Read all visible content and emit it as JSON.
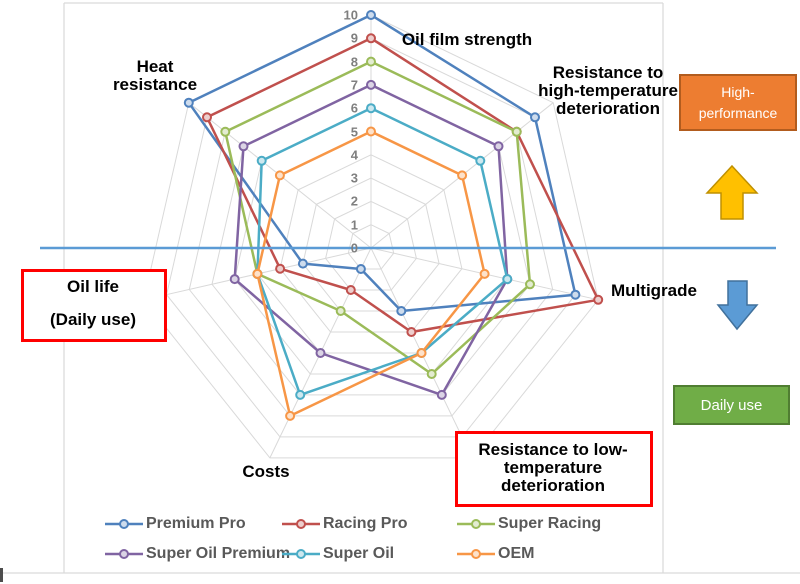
{
  "chart_data": {
    "type": "radar",
    "title": "",
    "axes": [
      {
        "label": "Oil film strength",
        "lines": [
          "Oil film strength"
        ]
      },
      {
        "label": "Resistance to high-temperature deterioration",
        "lines": [
          "Resistance to",
          "high-temperature",
          "deterioration"
        ]
      },
      {
        "label": "Multigrade",
        "lines": [
          "Multigrade"
        ]
      },
      {
        "label": "Resistance to low-temperature deterioration",
        "lines": [
          "Resistance to low-",
          "temperature",
          "deterioration"
        ]
      },
      {
        "label": "Costs",
        "lines": [
          "Costs"
        ]
      },
      {
        "label": "Oil life (Daily use)",
        "lines": [
          "Oil life",
          "(Daily use)"
        ]
      },
      {
        "label": "Heat resistance",
        "lines": [
          "Heat",
          "resistance"
        ]
      }
    ],
    "scale": {
      "min": 0,
      "max": 10,
      "step": 1,
      "tick_labels": [
        "0",
        "1",
        "2",
        "3",
        "4",
        "5",
        "6",
        "7",
        "8",
        "9",
        "10"
      ]
    },
    "series": [
      {
        "name": "Premium Pro",
        "color": "#4F81BD",
        "values": [
          10,
          9,
          9,
          3,
          1,
          3,
          10
        ]
      },
      {
        "name": "Racing Pro",
        "color": "#C0504D",
        "values": [
          9,
          8,
          10,
          4,
          2,
          4,
          9
        ]
      },
      {
        "name": "Super Racing",
        "color": "#9BBB59",
        "values": [
          8,
          8,
          7,
          6,
          3,
          5,
          8
        ]
      },
      {
        "name": "Super Oil Premium",
        "color": "#8064A2",
        "values": [
          7,
          7,
          6,
          7,
          5,
          6,
          7
        ]
      },
      {
        "name": "Super Oil",
        "color": "#4BACC6",
        "values": [
          6,
          6,
          6,
          5,
          7,
          5,
          6
        ]
      },
      {
        "name": "OEM",
        "color": "#F79646",
        "values": [
          5,
          5,
          5,
          5,
          8,
          5,
          5
        ]
      }
    ],
    "legend_position": "bottom",
    "grid": true,
    "gridline_color": "#D9D9D9"
  },
  "annotations": {
    "high_performance_box": {
      "lines": [
        "High-",
        "performance"
      ],
      "fill": "#ED7D31",
      "border": "#B25C1E",
      "text_color": "#FFFFFF"
    },
    "daily_use_box": {
      "label": "Daily use",
      "fill": "#70AD47",
      "border": "#507E32",
      "text_color": "#FFFFFF"
    },
    "up_arrow": {
      "fill": "#FFC000",
      "border": "#BF9000"
    },
    "down_arrow": {
      "fill": "#5B9BD5",
      "border": "#41719C"
    },
    "divider_line": {
      "color": "#5B9BD5"
    },
    "highlight_boxes": {
      "border_color": "#FF0000",
      "boxed_labels": [
        "Oil life (Daily use)",
        "Resistance to low-temperature deterioration"
      ]
    }
  }
}
